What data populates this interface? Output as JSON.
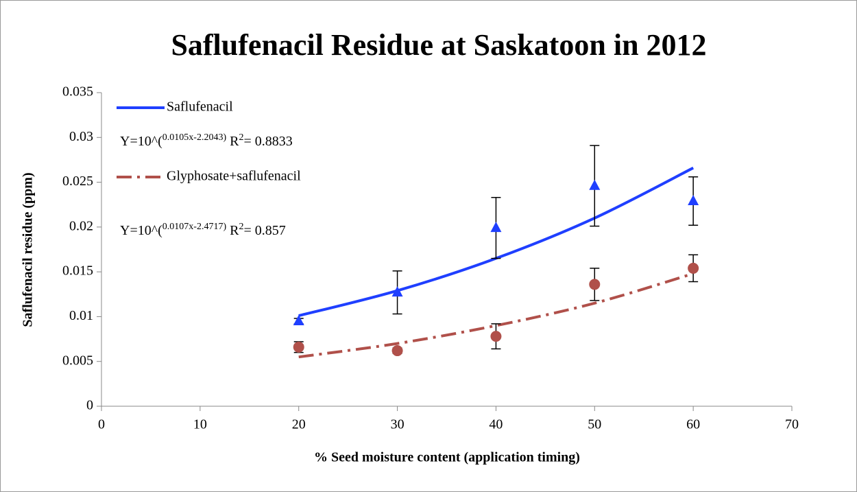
{
  "chart_data": {
    "type": "scatter",
    "title": "Saflufenacil Residue at Saskatoon in 2012",
    "xlabel": "% Seed moisture content (application timing)",
    "ylabel": "Saflufenacil residue (ppm)",
    "xlim": [
      0,
      70
    ],
    "xticks": [
      0,
      10,
      20,
      30,
      40,
      50,
      60,
      70
    ],
    "ylim": [
      0,
      0.035
    ],
    "yticks": [
      0,
      0.005,
      0.01,
      0.015,
      0.02,
      0.025,
      0.03,
      0.035
    ],
    "grid": false,
    "x": [
      20,
      30,
      40,
      50,
      60
    ],
    "series": [
      {
        "name": "Saflufenacil",
        "color": "#1f3fff",
        "marker": "triangle",
        "line_style": "solid",
        "values": [
          0.0095,
          0.0127,
          0.0199,
          0.0246,
          0.0229
        ],
        "errors": [
          0.0003,
          0.0024,
          0.0034,
          0.0045,
          0.0027
        ],
        "trend": [
          0.0101,
          0.0129,
          0.0165,
          0.021,
          0.0266
        ]
      },
      {
        "name": "Glyphosate+saflufenacil",
        "color": "#b0504a",
        "marker": "circle",
        "line_style": "dashdot",
        "values": [
          0.0066,
          0.0062,
          0.0078,
          0.0136,
          0.0154
        ],
        "errors": [
          0.0006,
          0.0003,
          0.0014,
          0.0018,
          0.0015
        ],
        "trend": [
          0.0055,
          0.007,
          0.009,
          0.0115,
          0.0148
        ]
      }
    ],
    "annotations": [
      {
        "parts": [
          {
            "text": "Y=10^("
          },
          {
            "text": "0.0105x-2.2043)",
            "sup": true
          },
          {
            "text": " R"
          },
          {
            "text": "2",
            "sup": true
          },
          {
            "text": "= 0.8833"
          }
        ]
      },
      {
        "parts": [
          {
            "text": "Y=10^("
          },
          {
            "text": "0.0107x-2.4717)",
            "sup": true
          },
          {
            "text": " R"
          },
          {
            "text": "2",
            "sup": true
          },
          {
            "text": "= 0.857"
          }
        ]
      }
    ]
  }
}
